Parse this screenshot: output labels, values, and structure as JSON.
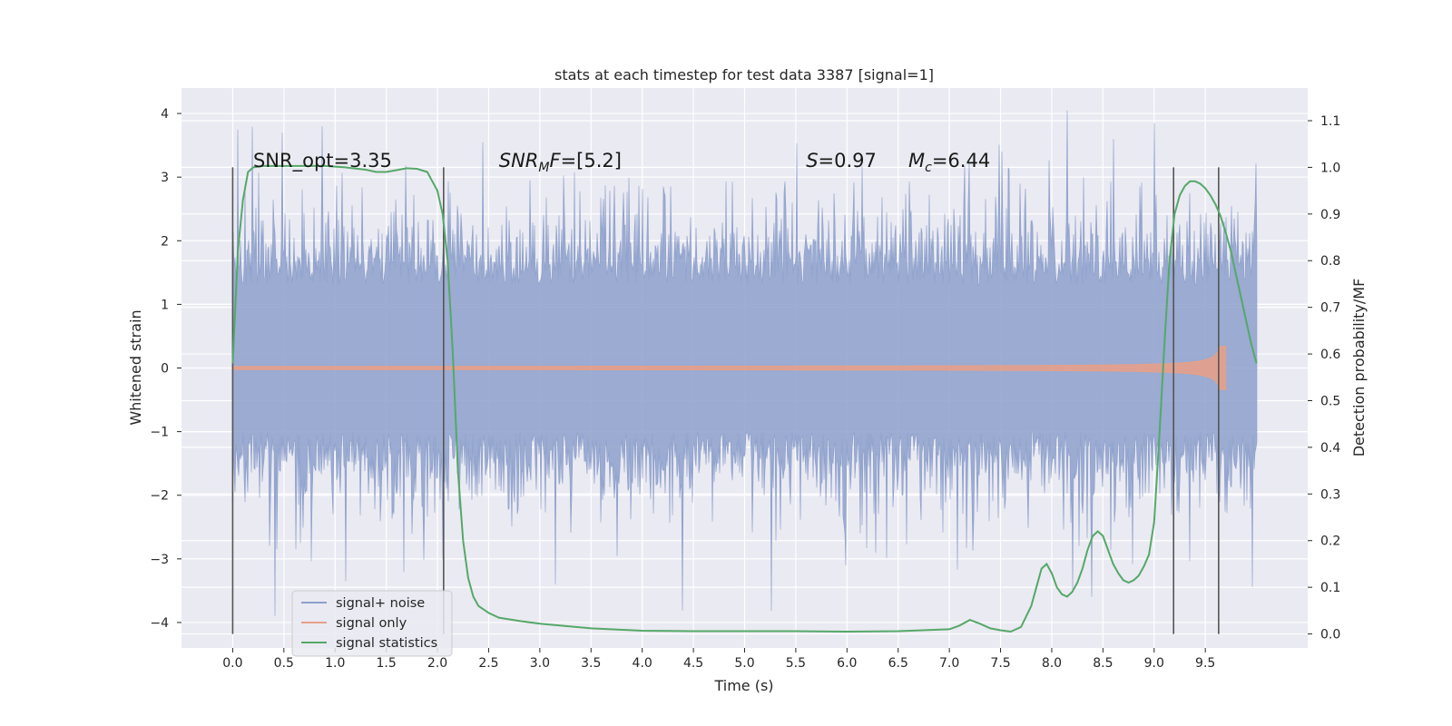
{
  "chart_data": {
    "type": "line",
    "title": "stats at each timestep for test data 3387 [signal=1]",
    "xlabel": "Time (s)",
    "ylabel": "Whitened strain",
    "y2label": "Detection probability/MF",
    "xlim": [
      -0.5,
      10.5
    ],
    "ylim": [
      -4.4,
      4.4
    ],
    "y2lim": [
      -0.03,
      1.17
    ],
    "x_ticks": [
      "0.0",
      "0.5",
      "1.0",
      "1.5",
      "2.0",
      "2.5",
      "3.0",
      "3.5",
      "4.0",
      "4.5",
      "5.0",
      "5.5",
      "6.0",
      "6.5",
      "7.0",
      "7.5",
      "8.0",
      "8.5",
      "9.0",
      "9.5"
    ],
    "y_ticks": [
      "4",
      "3",
      "2",
      "1",
      "0",
      "−1",
      "−2",
      "−3",
      "−4"
    ],
    "y2_ticks": [
      "1.1",
      "1.0",
      "0.9",
      "0.8",
      "0.7",
      "0.6",
      "0.5",
      "0.4",
      "0.3",
      "0.2",
      "0.1",
      "0.0"
    ],
    "grid": true,
    "legend_position": "lower-left",
    "annotations": [
      {
        "text": "SNR_opt=3.35",
        "x": 0.2
      },
      {
        "text": "SNR_MF=[5.2]",
        "x": 2.6,
        "main": "SNR",
        "sub": "M",
        "tail": "F=[5.2]",
        "italic": true
      },
      {
        "text": "S=0.97",
        "x": 5.6,
        "main": "S",
        "tail": "=0.97",
        "italic": true
      },
      {
        "text": "M_c=6.44",
        "x": 6.6,
        "main": "M",
        "sub": "c",
        "tail": "=6.44",
        "italic": true
      }
    ],
    "vertical_lines_x": [
      0.0,
      2.06,
      9.19,
      9.63
    ],
    "series": [
      {
        "name": "signal+ noise",
        "color": "#8da0cb",
        "axis": "left",
        "x_range": [
          0.0,
          10.0
        ],
        "typical_band": [
          -1.0,
          1.3
        ],
        "extremes": {
          "max": 4.05,
          "min": -3.9
        }
      },
      {
        "name": "signal only",
        "color": "#e5a08a",
        "axis": "left",
        "x_range": [
          0.0,
          9.7
        ],
        "peak_amplitude": 0.35,
        "merger_time": 9.65
      },
      {
        "name": "signal statistics",
        "color": "#55a868",
        "axis": "right",
        "x": [
          0.0,
          0.05,
          0.1,
          0.15,
          0.2,
          0.3,
          0.5,
          0.7,
          0.9,
          1.1,
          1.3,
          1.4,
          1.5,
          1.6,
          1.7,
          1.8,
          1.9,
          1.95,
          2.0,
          2.05,
          2.1,
          2.15,
          2.2,
          2.25,
          2.3,
          2.35,
          2.4,
          2.5,
          2.6,
          2.8,
          3.0,
          3.5,
          4.0,
          4.5,
          5.0,
          5.5,
          6.0,
          6.5,
          7.0,
          7.1,
          7.2,
          7.3,
          7.4,
          7.5,
          7.6,
          7.7,
          7.8,
          7.85,
          7.9,
          7.95,
          8.0,
          8.05,
          8.1,
          8.15,
          8.2,
          8.25,
          8.3,
          8.35,
          8.4,
          8.45,
          8.5,
          8.55,
          8.6,
          8.65,
          8.7,
          8.75,
          8.8,
          8.85,
          8.9,
          8.95,
          9.0,
          9.05,
          9.1,
          9.15,
          9.2,
          9.25,
          9.3,
          9.35,
          9.4,
          9.45,
          9.5,
          9.55,
          9.6,
          9.65,
          9.7,
          9.75,
          9.8,
          9.85,
          9.9,
          9.95,
          10.0
        ],
        "y": [
          0.58,
          0.82,
          0.93,
          0.99,
          1.0,
          1.003,
          1.003,
          1.003,
          1.003,
          1.0,
          0.995,
          0.99,
          0.99,
          0.994,
          0.998,
          0.997,
          0.99,
          0.97,
          0.95,
          0.9,
          0.8,
          0.6,
          0.35,
          0.2,
          0.12,
          0.08,
          0.06,
          0.045,
          0.035,
          0.028,
          0.022,
          0.012,
          0.007,
          0.006,
          0.006,
          0.006,
          0.005,
          0.006,
          0.01,
          0.018,
          0.03,
          0.022,
          0.012,
          0.008,
          0.005,
          0.015,
          0.06,
          0.1,
          0.14,
          0.15,
          0.13,
          0.1,
          0.085,
          0.08,
          0.09,
          0.11,
          0.14,
          0.18,
          0.21,
          0.22,
          0.21,
          0.18,
          0.15,
          0.13,
          0.115,
          0.11,
          0.115,
          0.125,
          0.145,
          0.17,
          0.24,
          0.42,
          0.62,
          0.8,
          0.9,
          0.94,
          0.96,
          0.97,
          0.97,
          0.965,
          0.955,
          0.94,
          0.92,
          0.895,
          0.86,
          0.82,
          0.77,
          0.72,
          0.67,
          0.62,
          0.58
        ]
      }
    ]
  }
}
